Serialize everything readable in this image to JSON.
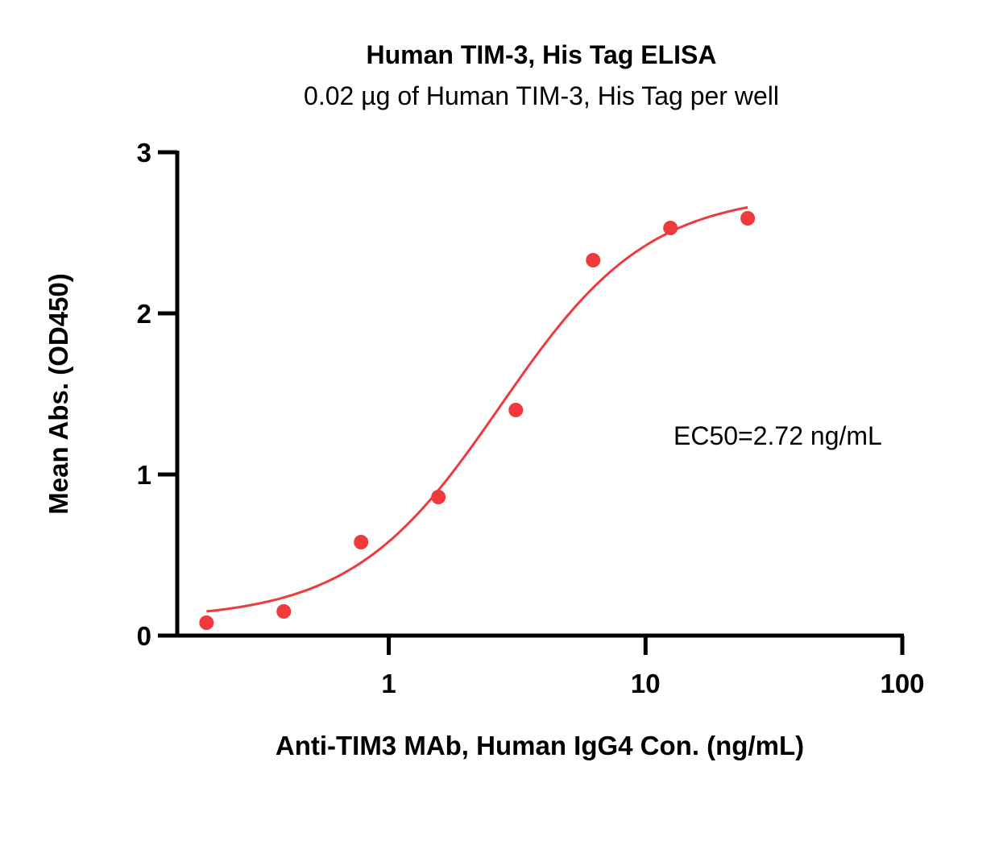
{
  "chart_data": {
    "type": "scatter",
    "title": "Human TIM-3, His Tag  ELISA",
    "subtitle": "0.02 µg of Human TIM-3, His Tag per well",
    "xlabel": "Anti-TIM3 MAb, Human IgG4 Con. (ng/mL)",
    "ylabel": "Mean Abs. (OD450)",
    "x_scale": "log",
    "xlim": [
      0.15,
      100
    ],
    "ylim": [
      0,
      3
    ],
    "x_ticks": [
      1,
      10,
      100
    ],
    "x_tick_labels": [
      "1",
      "10",
      "100"
    ],
    "y_ticks": [
      0,
      1,
      2,
      3
    ],
    "y_tick_labels": [
      "0",
      "1",
      "2",
      "3"
    ],
    "grid": false,
    "series": [
      {
        "x": [
          0.195,
          0.39,
          0.78,
          1.56,
          3.125,
          6.25,
          12.5,
          25
        ],
        "y": [
          0.08,
          0.15,
          0.58,
          0.86,
          1.4,
          2.33,
          2.53,
          2.59
        ]
      }
    ],
    "fit": {
      "model": "4PL",
      "bottom": 0.1,
      "top": 2.75,
      "ec50": 2.72,
      "hill": 1.5,
      "x_range": [
        0.195,
        25
      ]
    },
    "annotations": [
      {
        "text": "EC50=2.72 ng/mL"
      }
    ],
    "colors": {
      "points": "#f0393c",
      "fit_line": "#f0393c",
      "axes": "#000000"
    }
  }
}
